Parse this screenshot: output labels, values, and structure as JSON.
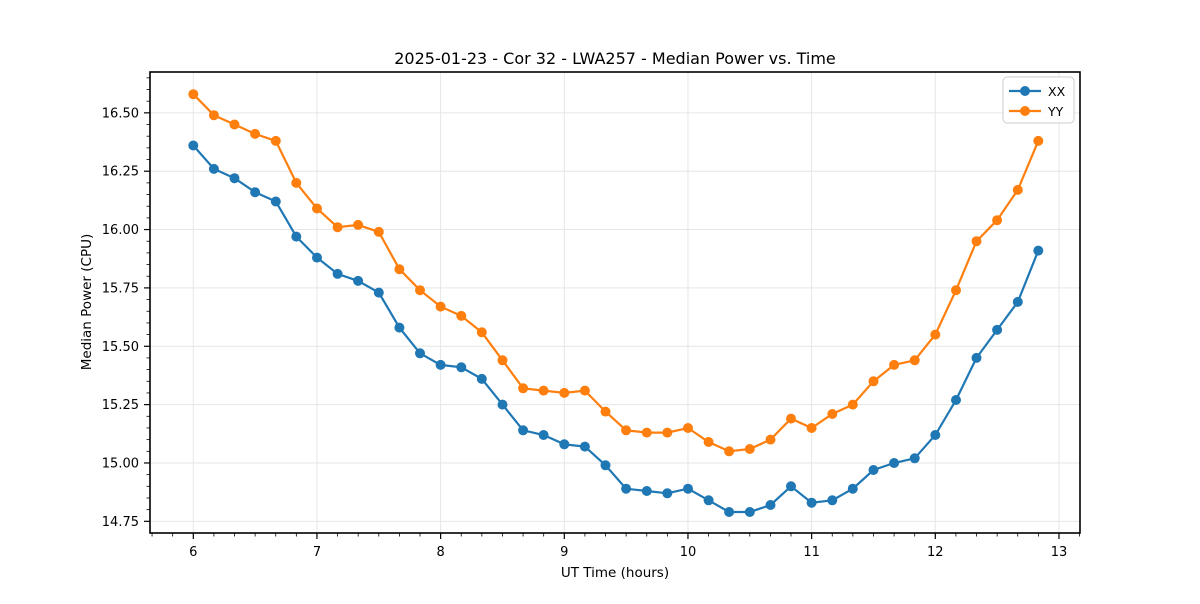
{
  "chart": {
    "title": "2025-01-23 - Cor 32 - LWA257 - Median Power vs. Time",
    "xlabel": "UT Time (hours)",
    "ylabel": "Median Power (CPU)"
  },
  "chart_data": {
    "type": "line",
    "title": "2025-01-23 - Cor 32 - LWA257 - Median Power vs. Time",
    "xlabel": "UT Time (hours)",
    "ylabel": "Median Power (CPU)",
    "grid": true,
    "legend_position": "upper right",
    "marker": "circle",
    "xlim": [
      5.65,
      13.17
    ],
    "ylim": [
      14.7,
      16.675
    ],
    "xticks": [
      6,
      7,
      8,
      9,
      10,
      11,
      12,
      13
    ],
    "yticks": [
      14.75,
      15.0,
      15.25,
      15.5,
      15.75,
      16.0,
      16.25,
      16.5
    ],
    "x_minor_step": 0.1667,
    "y_minor_step": 0.05,
    "x": [
      6.0,
      6.167,
      6.333,
      6.5,
      6.667,
      6.833,
      7.0,
      7.167,
      7.333,
      7.5,
      7.667,
      7.833,
      8.0,
      8.167,
      8.333,
      8.5,
      8.667,
      8.833,
      9.0,
      9.167,
      9.333,
      9.5,
      9.667,
      9.833,
      10.0,
      10.167,
      10.333,
      10.5,
      10.667,
      10.833,
      11.0,
      11.167,
      11.333,
      11.5,
      11.667,
      11.833,
      12.0,
      12.167,
      12.333,
      12.5,
      12.667,
      12.833
    ],
    "series": [
      {
        "name": "XX",
        "color": "#1f77b4",
        "values": [
          16.36,
          16.26,
          16.22,
          16.16,
          16.12,
          15.97,
          15.88,
          15.81,
          15.78,
          15.73,
          15.58,
          15.47,
          15.42,
          15.41,
          15.36,
          15.25,
          15.14,
          15.12,
          15.08,
          15.07,
          14.99,
          14.89,
          14.88,
          14.87,
          14.89,
          14.84,
          14.79,
          14.79,
          14.82,
          14.9,
          14.83,
          14.84,
          14.89,
          14.97,
          15.0,
          15.02,
          15.12,
          15.27,
          15.45,
          15.57,
          15.69,
          15.91
        ]
      },
      {
        "name": "YY",
        "color": "#ff7f0e",
        "values": [
          16.58,
          16.49,
          16.45,
          16.41,
          16.38,
          16.2,
          16.09,
          16.01,
          16.02,
          15.99,
          15.83,
          15.74,
          15.67,
          15.63,
          15.56,
          15.44,
          15.32,
          15.31,
          15.3,
          15.31,
          15.22,
          15.14,
          15.13,
          15.13,
          15.15,
          15.09,
          15.05,
          15.06,
          15.1,
          15.19,
          15.15,
          15.21,
          15.25,
          15.35,
          15.42,
          15.44,
          15.55,
          15.74,
          15.95,
          16.04,
          16.17,
          16.38
        ]
      }
    ],
    "style": {
      "grid_color": "#e6e6e6",
      "spine_color": "#000000",
      "legend_border_color": "#cccccc",
      "background": "#ffffff"
    }
  }
}
